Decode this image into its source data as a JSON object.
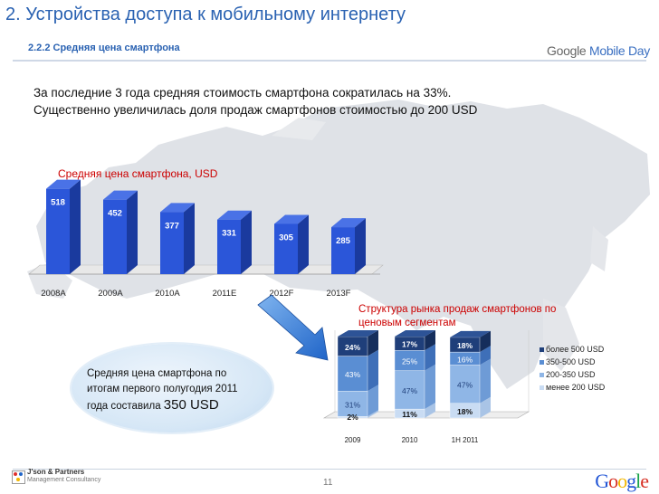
{
  "header": {
    "title": "2. Устройства доступа к мобильному интернету",
    "subtitle": "2.2.2 Средняя цена смартфона",
    "event_logo": {
      "part1": "Google ",
      "part2": "Mobile Day"
    }
  },
  "intro": {
    "line1": "За последние 3 года средняя стоимость смартфона сократилась на 33%.",
    "line2": "Существенно увеличилась доля продаж смартфонов стоимостью до 200 USD"
  },
  "callout": {
    "line1": "Средняя цена смартфона по",
    "line2": "итогам первого полугодия 2011",
    "line3_prefix": "года составила ",
    "line3_value": "350 USD"
  },
  "footer": {
    "company_line1": "J'son & Partners",
    "company_line2": "Management Consultancy",
    "page_number": "11",
    "brand": "Google"
  },
  "colors": {
    "title_blue": "#2a62b2",
    "bar_blue": "#2b56d9",
    "accent_red": "#cc0000",
    "seg_over500": "#1f3f7a",
    "seg_350_500": "#5a8ed3",
    "seg_200_350": "#8fb6e6",
    "seg_under200": "#c9dcf3"
  },
  "chart_data": [
    {
      "type": "bar",
      "title": "Средняя цена смартфона, USD",
      "categories": [
        "2008A",
        "2009A",
        "2010A",
        "2011E",
        "2012F",
        "2013F"
      ],
      "values": [
        518,
        452,
        377,
        331,
        305,
        285
      ],
      "ylim": [
        0,
        560
      ]
    },
    {
      "type": "bar",
      "stacked": true,
      "title": "Структура рынка продаж смартфонов по ценовым сегментам",
      "categories": [
        "2009",
        "2010",
        "1H 2011"
      ],
      "series": [
        {
          "name": "менее 200 USD",
          "values": [
            2,
            11,
            18
          ],
          "labels": [
            "2%",
            "11%",
            "18%"
          ]
        },
        {
          "name": "200-350 USD",
          "values": [
            31,
            47,
            47
          ],
          "labels": [
            "31%",
            "47%",
            "47%"
          ]
        },
        {
          "name": "350-500 USD",
          "values": [
            43,
            25,
            16
          ],
          "labels": [
            "43%",
            "25%",
            "16%"
          ]
        },
        {
          "name": "более 500 USD",
          "values": [
            24,
            17,
            18
          ],
          "labels": [
            "24%",
            "17%",
            "18%"
          ]
        }
      ],
      "legend_order": [
        "более 500 USD",
        "350-500 USD",
        "200-350 USD",
        "менее 200 USD"
      ],
      "legend": "right"
    }
  ]
}
